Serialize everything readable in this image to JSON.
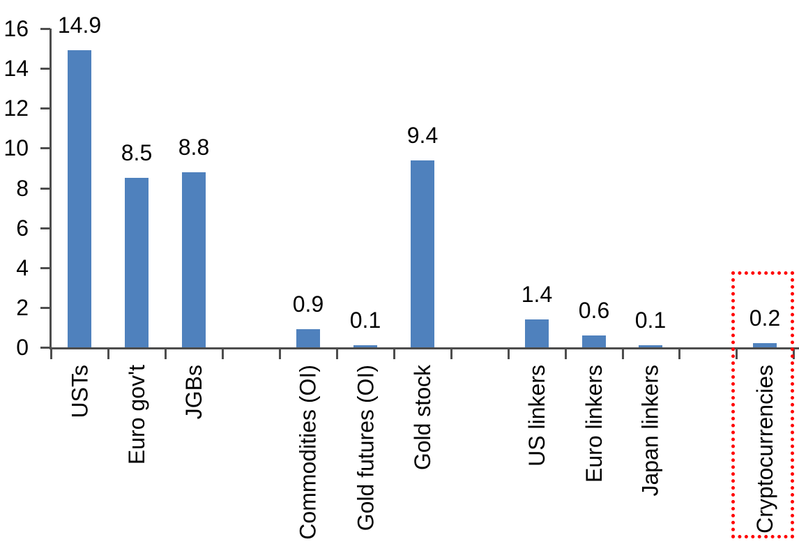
{
  "chart_data": {
    "type": "bar",
    "categories": [
      "USTs",
      "Euro gov't",
      "JGBs",
      "",
      "Commodities (OI)",
      "Gold futures (OI)",
      "Gold stock",
      "",
      "US linkers",
      "Euro linkers",
      "Japan linkers",
      "",
      "Cryptocurrencies"
    ],
    "values": [
      14.9,
      8.5,
      8.8,
      null,
      0.9,
      0.1,
      9.4,
      null,
      1.4,
      0.6,
      0.1,
      null,
      0.2
    ],
    "data_labels": [
      "14.9",
      "8.5",
      "8.8",
      null,
      "0.9",
      "0.1",
      "9.4",
      null,
      "1.4",
      "0.6",
      "0.1",
      null,
      "0.2"
    ],
    "ylim": [
      0,
      16
    ],
    "yticks": [
      0,
      2,
      4,
      6,
      8,
      10,
      12,
      14,
      16
    ],
    "grid": false,
    "legend": false,
    "x_label_rotation": "90deg-up",
    "bar_color": "#4f81bd",
    "axis_color": "#4d4d4d",
    "text_color": "#000000",
    "highlight": {
      "category": "Cryptocurrencies",
      "shape": "dotted-rectangle",
      "color": "#ff0000"
    }
  }
}
